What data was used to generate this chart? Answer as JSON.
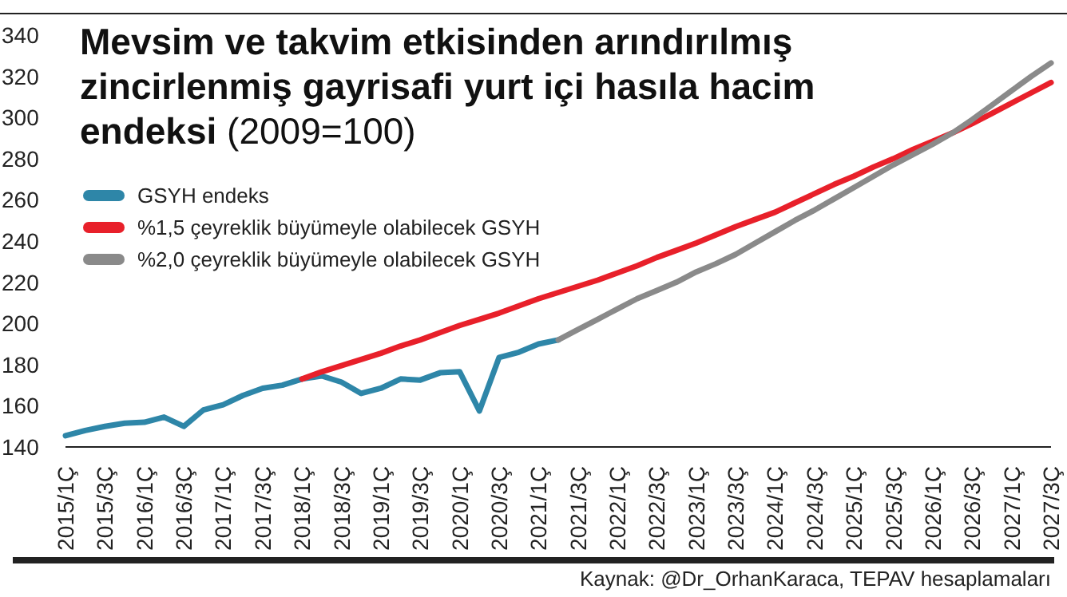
{
  "chart_data": {
    "type": "line",
    "title": "Mevsim ve takvim etkisinden arındırılmış zincirlenmiş gayrisafi yurt içi hasıla hacim endeksi",
    "subtitle": "(2009=100)",
    "categories": [
      "2015/1Ç",
      null,
      "2015/3Ç",
      null,
      "2016/1Ç",
      null,
      "2016/3Ç",
      null,
      "2017/1Ç",
      null,
      "2017/3Ç",
      null,
      "2018/1Ç",
      null,
      "2018/3Ç",
      null,
      "2019/1Ç",
      null,
      "2019/3Ç",
      null,
      "2020/1Ç",
      null,
      "2020/3Ç",
      null,
      "2021/1Ç",
      null,
      "2021/3Ç",
      null,
      "2022/1Ç",
      null,
      "2022/3Ç",
      null,
      "2023/1Ç",
      null,
      "2023/3Ç",
      null,
      "2024/1Ç",
      null,
      "2024/3Ç",
      null,
      "2025/1Ç",
      null,
      "2025/3Ç",
      null,
      "2026/1Ç",
      null,
      "2026/3Ç",
      null,
      "2027/1Ç",
      null,
      "2027/3Ç"
    ],
    "series": [
      {
        "name": "GSYH endeks",
        "color": "#2e86a8",
        "values": [
          145.5,
          148,
          150,
          151.5,
          152,
          154.5,
          150,
          158,
          160.5,
          165,
          168.5,
          170,
          173,
          174.5,
          171.5,
          166,
          168.5,
          173,
          172.5,
          176,
          176.5,
          157.5,
          183.5,
          186,
          190,
          192,
          null,
          null,
          null,
          null,
          null,
          null,
          null,
          null,
          null,
          null,
          null,
          null,
          null,
          null,
          null,
          null,
          null,
          null,
          null,
          null,
          null,
          null,
          null,
          null,
          null
        ]
      },
      {
        "name": "%1,5 çeyreklik büyümeyle olabilecek GSYH",
        "color": "#e8202a",
        "values": [
          null,
          null,
          null,
          null,
          null,
          null,
          null,
          null,
          null,
          null,
          null,
          null,
          173,
          176.5,
          179.5,
          182.5,
          185.5,
          189,
          192,
          195.5,
          199,
          202,
          205,
          208.5,
          212,
          215,
          218,
          221,
          224.5,
          228,
          232,
          235.5,
          239,
          243,
          247,
          250.5,
          254,
          258.5,
          263,
          267.5,
          271.5,
          276,
          280,
          284.5,
          288.5,
          292.5,
          297,
          302,
          307,
          312,
          317
        ]
      },
      {
        "name": "%2,0 çeyreklik büyümeyle olabilecek GSYH",
        "color": "#8a8a8a",
        "values": [
          null,
          null,
          null,
          null,
          null,
          null,
          null,
          null,
          null,
          null,
          null,
          null,
          null,
          null,
          null,
          null,
          null,
          null,
          null,
          null,
          null,
          null,
          null,
          null,
          null,
          192,
          197,
          202,
          207,
          212,
          216,
          220,
          225,
          229,
          233.5,
          239,
          244.5,
          250,
          255,
          260.5,
          266,
          271.5,
          277,
          282,
          287,
          292.5,
          299,
          306,
          313,
          320,
          326.5
        ]
      }
    ],
    "ylim": [
      140,
      340
    ],
    "yticks": [
      140,
      160,
      180,
      200,
      220,
      240,
      260,
      280,
      300,
      320,
      340
    ],
    "legend": "top left",
    "marker": "none",
    "line_style": "solid",
    "annotations": [
      "Kaynak: @Dr_OrhanKaraca, TEPAV hesaplamaları"
    ]
  }
}
